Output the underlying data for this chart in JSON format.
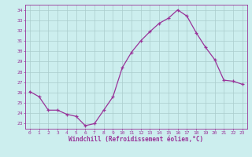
{
  "x": [
    0,
    1,
    2,
    3,
    4,
    5,
    6,
    7,
    8,
    9,
    10,
    11,
    12,
    13,
    14,
    15,
    16,
    17,
    18,
    19,
    20,
    21,
    22,
    23
  ],
  "y": [
    26.1,
    25.6,
    24.3,
    24.3,
    23.9,
    23.7,
    22.8,
    23.0,
    24.3,
    25.6,
    28.4,
    29.9,
    31.0,
    31.9,
    32.7,
    33.2,
    34.0,
    33.4,
    31.8,
    30.4,
    29.2,
    27.2,
    27.1,
    26.8
  ],
  "line_color": "#993399",
  "marker": "+",
  "marker_size": 3,
  "bg_color": "#cceeee",
  "grid_color": "#aacccc",
  "xlabel": "Windchill (Refroidissement éolien,°C)",
  "xlabel_color": "#993399",
  "tick_color": "#993399",
  "ylabel_ticks": [
    23,
    24,
    25,
    26,
    27,
    28,
    29,
    30,
    31,
    32,
    33,
    34
  ],
  "xlim": [
    -0.5,
    23.5
  ],
  "ylim": [
    22.5,
    34.5
  ],
  "xticks": [
    0,
    1,
    2,
    3,
    4,
    5,
    6,
    7,
    8,
    9,
    10,
    11,
    12,
    13,
    14,
    15,
    16,
    17,
    18,
    19,
    20,
    21,
    22,
    23
  ]
}
